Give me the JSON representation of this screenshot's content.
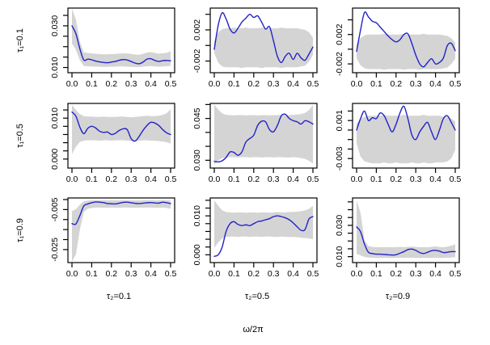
{
  "figure": {
    "xlabel": "ω/2π",
    "row_labels": [
      "τ₁=0.1",
      "τ₁=0.5",
      "τ₁=0.9"
    ],
    "col_labels": [
      "τ₂=0.1",
      "τ₂=0.5",
      "τ₂=0.9"
    ],
    "colors": {
      "line": "#2222c8",
      "band": "#d4d4d4",
      "axis": "#000000",
      "background": "#ffffff"
    }
  },
  "chart_data": {
    "type": "line",
    "description": "3x3 grid of spectral estimate curves (blue line) with gray confidence bands vs frequency",
    "x_label": "ω/2π",
    "x_start": 0.0,
    "x_end": 0.5,
    "x_step": 0.02,
    "x_tick_labels": [
      "0.0",
      "0.1",
      "0.2",
      "0.3",
      "0.4",
      "0.5"
    ],
    "x_tick_values": [
      0.0,
      0.1,
      0.2,
      0.3,
      0.4,
      0.5
    ],
    "panels": [
      {
        "row": 0,
        "col": 0,
        "row_label": "τ₁=0.1",
        "col_label": "τ₂=0.1",
        "ylim": [
          0.0075,
          0.0385
        ],
        "yticks": [
          0.01,
          0.015,
          0.02,
          0.025,
          0.03,
          0.035
        ],
        "ytick_labels": [
          "0.010",
          "0.030"
        ],
        "ytick_label_values": [
          0.01,
          0.03
        ],
        "line": [
          0.03,
          0.0262,
          0.019,
          0.0136,
          0.014,
          0.0137,
          0.0131,
          0.0127,
          0.0124,
          0.0123,
          0.0126,
          0.0129,
          0.0135,
          0.0138,
          0.0136,
          0.0129,
          0.0121,
          0.0118,
          0.0126,
          0.014,
          0.0142,
          0.0134,
          0.0129,
          0.0133,
          0.0134,
          0.0132
        ],
        "band_lo": [
          0.0215,
          0.0185,
          0.0135,
          0.0108,
          0.0106,
          0.0105,
          0.0104,
          0.0104,
          0.0103,
          0.0103,
          0.0104,
          0.0104,
          0.0105,
          0.0105,
          0.0104,
          0.0103,
          0.0102,
          0.0102,
          0.0104,
          0.0106,
          0.0107,
          0.0105,
          0.0104,
          0.0105,
          0.0106,
          0.0108
        ],
        "band_hi": [
          0.0382,
          0.033,
          0.0225,
          0.0172,
          0.017,
          0.0168,
          0.0166,
          0.0164,
          0.0163,
          0.0163,
          0.0164,
          0.0165,
          0.0167,
          0.0168,
          0.0167,
          0.0165,
          0.0162,
          0.0161,
          0.0165,
          0.0172,
          0.0174,
          0.017,
          0.0166,
          0.0168,
          0.017,
          0.0178
        ]
      },
      {
        "row": 0,
        "col": 1,
        "row_label": "τ₁=0.1",
        "col_label": "τ₂=0.5",
        "ylim": [
          -0.0035,
          0.0048
        ],
        "yticks": [
          -0.002,
          0.0,
          0.002,
          0.004
        ],
        "ytick_labels": [
          "-0.002",
          "0.002"
        ],
        "ytick_label_values": [
          -0.002,
          0.002
        ],
        "line": [
          -0.0005,
          0.0026,
          0.0042,
          0.0034,
          0.0021,
          0.0016,
          0.0022,
          0.003,
          0.0035,
          0.004,
          0.0036,
          0.0038,
          0.003,
          0.0021,
          0.0024,
          0.0006,
          -0.0014,
          -0.0022,
          -0.0014,
          -0.001,
          -0.0018,
          -0.001,
          -0.0016,
          -0.0019,
          -0.0011,
          -0.0002
        ],
        "band_lo": [
          -0.001,
          -0.0022,
          -0.0027,
          -0.0028,
          -0.0028,
          -0.0028,
          -0.0028,
          -0.0029,
          -0.0028,
          -0.0028,
          -0.0028,
          -0.0028,
          -0.0029,
          -0.0028,
          -0.0028,
          -0.0028,
          -0.0028,
          -0.0029,
          -0.0028,
          -0.0028,
          -0.0028,
          -0.0028,
          -0.0027,
          -0.0026,
          -0.0021,
          -0.0012
        ],
        "band_hi": [
          0.0006,
          0.0017,
          0.0021,
          0.0022,
          0.0022,
          0.0023,
          0.0022,
          0.0022,
          0.0023,
          0.0022,
          0.0022,
          0.0022,
          0.0023,
          0.0022,
          0.0022,
          0.0022,
          0.0022,
          0.0023,
          0.0022,
          0.0022,
          0.0022,
          0.0022,
          0.0021,
          0.002,
          0.0017,
          0.001
        ]
      },
      {
        "row": 0,
        "col": 2,
        "row_label": "τ₁=0.1",
        "col_label": "τ₂=0.9",
        "ylim": [
          -0.0032,
          0.0056
        ],
        "yticks": [
          -0.002,
          0.0,
          0.002,
          0.004
        ],
        "ytick_labels": [
          "-0.002",
          "0.002"
        ],
        "ytick_label_values": [
          -0.002,
          0.002
        ],
        "line": [
          -0.0003,
          0.0026,
          0.005,
          0.0044,
          0.0038,
          0.0036,
          0.003,
          0.0024,
          0.0018,
          0.0013,
          0.001,
          0.0013,
          0.002,
          0.0021,
          0.0008,
          -0.0008,
          -0.002,
          -0.0024,
          -0.0018,
          -0.0013,
          -0.002,
          -0.0018,
          -0.0012,
          0.0005,
          0.0008,
          -0.0002
        ],
        "band_lo": [
          -0.0012,
          -0.0022,
          -0.0026,
          -0.0027,
          -0.0027,
          -0.0027,
          -0.0027,
          -0.0028,
          -0.0027,
          -0.0027,
          -0.0027,
          -0.0027,
          -0.0028,
          -0.0027,
          -0.0027,
          -0.0027,
          -0.0028,
          -0.0027,
          -0.0027,
          -0.0027,
          -0.0027,
          -0.0027,
          -0.0026,
          -0.0025,
          -0.002,
          -0.0013
        ],
        "band_hi": [
          0.0007,
          0.0015,
          0.0019,
          0.002,
          0.002,
          0.002,
          0.002,
          0.0021,
          0.002,
          0.002,
          0.002,
          0.002,
          0.0021,
          0.002,
          0.002,
          0.002,
          0.002,
          0.0021,
          0.002,
          0.002,
          0.002,
          0.002,
          0.0019,
          0.0018,
          0.0015,
          0.0009
        ]
      },
      {
        "row": 1,
        "col": 0,
        "row_label": "τ₁=0.5",
        "col_label": "τ₂=0.1",
        "ylim": [
          -0.0022,
          0.0136
        ],
        "yticks": [
          0.0,
          0.002,
          0.004,
          0.006,
          0.008,
          0.01,
          0.012
        ],
        "ytick_labels": [
          "0.000",
          "0.010"
        ],
        "ytick_label_values": [
          0.0,
          0.01
        ],
        "line": [
          0.0115,
          0.0105,
          0.0078,
          0.0062,
          0.0075,
          0.008,
          0.0076,
          0.0068,
          0.0065,
          0.0066,
          0.006,
          0.0063,
          0.007,
          0.0074,
          0.0072,
          0.005,
          0.0044,
          0.0055,
          0.007,
          0.0082,
          0.009,
          0.0088,
          0.0082,
          0.0072,
          0.0064,
          0.006
        ],
        "band_lo": [
          0.0012,
          0.003,
          0.0042,
          0.0045,
          0.0046,
          0.0046,
          0.0046,
          0.0045,
          0.0046,
          0.0046,
          0.0045,
          0.0046,
          0.0046,
          0.0046,
          0.0045,
          0.0044,
          0.0044,
          0.0045,
          0.0046,
          0.0046,
          0.0045,
          0.0045,
          0.0044,
          0.0043,
          0.0041,
          0.0038
        ],
        "band_hi": [
          0.0132,
          0.012,
          0.011,
          0.0105,
          0.0104,
          0.0104,
          0.0103,
          0.0103,
          0.0104,
          0.0103,
          0.0103,
          0.0103,
          0.0104,
          0.0104,
          0.0103,
          0.0102,
          0.0103,
          0.0104,
          0.0105,
          0.0106,
          0.0105,
          0.0105,
          0.0106,
          0.0108,
          0.0112,
          0.0122
        ]
      },
      {
        "row": 1,
        "col": 1,
        "row_label": "τ₁=0.5",
        "col_label": "τ₂=0.5",
        "ylim": [
          0.0272,
          0.0504
        ],
        "yticks": [
          0.03,
          0.035,
          0.04,
          0.045,
          0.05
        ],
        "ytick_labels": [
          "0.030",
          "0.045"
        ],
        "ytick_label_values": [
          0.03,
          0.045
        ],
        "line": [
          0.0296,
          0.0294,
          0.0298,
          0.031,
          0.033,
          0.0328,
          0.0318,
          0.033,
          0.0365,
          0.0378,
          0.039,
          0.0425,
          0.044,
          0.0438,
          0.041,
          0.0402,
          0.0425,
          0.046,
          0.0465,
          0.045,
          0.0442,
          0.0438,
          0.043,
          0.0442,
          0.0438,
          0.043
        ],
        "band_lo": [
          0.0284,
          0.03,
          0.0308,
          0.031,
          0.0311,
          0.0311,
          0.031,
          0.0311,
          0.0311,
          0.031,
          0.0311,
          0.0311,
          0.031,
          0.0311,
          0.0311,
          0.031,
          0.0311,
          0.0311,
          0.031,
          0.031,
          0.0311,
          0.031,
          0.0308,
          0.0305,
          0.0298,
          0.0288
        ],
        "band_hi": [
          0.05,
          0.0482,
          0.0468,
          0.0463,
          0.0462,
          0.0461,
          0.0462,
          0.0462,
          0.0461,
          0.0462,
          0.0462,
          0.0461,
          0.0462,
          0.0462,
          0.0461,
          0.0462,
          0.0462,
          0.0463,
          0.0462,
          0.0462,
          0.0463,
          0.0464,
          0.0466,
          0.047,
          0.048,
          0.0498
        ]
      },
      {
        "row": 1,
        "col": 2,
        "row_label": "τ₁=0.5",
        "col_label": "τ₂=0.9",
        "ylim": [
          -0.004,
          0.0028
        ],
        "yticks": [
          -0.003,
          -0.002,
          -0.001,
          0.0,
          0.001,
          0.002
        ],
        "ytick_labels": [
          "-0.003",
          "0.001"
        ],
        "ytick_label_values": [
          -0.003,
          0.001
        ],
        "line": [
          0.0,
          0.0012,
          0.002,
          0.001,
          0.0013,
          0.0012,
          0.0018,
          0.0015,
          0.0006,
          -0.0002,
          0.0006,
          0.0018,
          0.0025,
          0.0012,
          -0.0005,
          -0.001,
          -0.0002,
          0.0004,
          0.0008,
          -0.0002,
          -0.001,
          0.0,
          0.0012,
          0.0015,
          0.0008,
          0.0
        ],
        "band_lo": [
          -0.0014,
          -0.0028,
          -0.0033,
          -0.0034,
          -0.0035,
          -0.0035,
          -0.0035,
          -0.0034,
          -0.0035,
          -0.0035,
          -0.0034,
          -0.0035,
          -0.0035,
          -0.0035,
          -0.0034,
          -0.0035,
          -0.0035,
          -0.0034,
          -0.0035,
          -0.0035,
          -0.0034,
          -0.0034,
          -0.0034,
          -0.0033,
          -0.003,
          -0.0021
        ],
        "band_hi": [
          0.0007,
          0.0012,
          0.0014,
          0.0015,
          0.0015,
          0.0015,
          0.0015,
          0.0016,
          0.0015,
          0.0015,
          0.0015,
          0.0015,
          0.0016,
          0.0015,
          0.0015,
          0.0015,
          0.0015,
          0.0016,
          0.0015,
          0.0015,
          0.0015,
          0.0015,
          0.0014,
          0.0014,
          0.0012,
          0.0009
        ]
      },
      {
        "row": 2,
        "col": 0,
        "row_label": "τ₁=0.9",
        "col_label": "τ₂=0.1",
        "ylim": [
          -0.0315,
          0.0008
        ],
        "yticks": [
          -0.025,
          -0.02,
          -0.015,
          -0.01,
          -0.005,
          0.0
        ],
        "ytick_labels": [
          "-0.025",
          "-0.005"
        ],
        "ytick_label_values": [
          -0.025,
          -0.005
        ],
        "line": [
          -0.012,
          -0.0122,
          -0.008,
          -0.0032,
          -0.0022,
          -0.0016,
          -0.0012,
          -0.0013,
          -0.0015,
          -0.002,
          -0.0021,
          -0.0022,
          -0.0018,
          -0.0014,
          -0.0013,
          -0.0016,
          -0.0019,
          -0.002,
          -0.0018,
          -0.0016,
          -0.0015,
          -0.0017,
          -0.0018,
          -0.0013,
          -0.0016,
          -0.002
        ],
        "band_lo": [
          -0.031,
          -0.0275,
          -0.015,
          -0.0062,
          -0.0046,
          -0.0042,
          -0.004,
          -0.004,
          -0.0041,
          -0.0041,
          -0.004,
          -0.0041,
          -0.0041,
          -0.004,
          -0.004,
          -0.0041,
          -0.0041,
          -0.0041,
          -0.004,
          -0.004,
          -0.004,
          -0.0041,
          -0.0041,
          -0.004,
          -0.0042,
          -0.0046
        ],
        "band_hi": [
          -0.0058,
          -0.0048,
          -0.0026,
          -0.0009,
          -0.0005,
          -0.0004,
          -0.0003,
          -0.0003,
          -0.0004,
          -0.0004,
          -0.0003,
          -0.0004,
          -0.0004,
          -0.0003,
          -0.0003,
          -0.0004,
          -0.0004,
          -0.0004,
          -0.0003,
          -0.0003,
          -0.0003,
          -0.0004,
          -0.0004,
          -0.0003,
          -0.0004,
          -0.0005
        ]
      },
      {
        "row": 2,
        "col": 1,
        "row_label": "τ₁=0.9",
        "col_label": "τ₂=0.5",
        "ylim": [
          -0.002,
          0.0146
        ],
        "yticks": [
          0.0,
          0.002,
          0.004,
          0.006,
          0.008,
          0.01,
          0.012,
          0.014
        ],
        "ytick_labels": [
          "0.000",
          "0.010"
        ],
        "ytick_label_values": [
          0.0,
          0.01
        ],
        "line": [
          -0.0004,
          0.0,
          0.002,
          0.006,
          0.008,
          0.0085,
          0.0078,
          0.0075,
          0.0077,
          0.0075,
          0.008,
          0.0085,
          0.0087,
          0.009,
          0.0093,
          0.0098,
          0.01,
          0.0098,
          0.0095,
          0.009,
          0.0082,
          0.0072,
          0.0063,
          0.0065,
          0.0092,
          0.0098
        ],
        "band_lo": [
          0.0018,
          0.0032,
          0.0042,
          0.0046,
          0.0047,
          0.0047,
          0.0046,
          0.0047,
          0.0047,
          0.0046,
          0.0047,
          0.0047,
          0.0046,
          0.0047,
          0.0047,
          0.0046,
          0.0046,
          0.0047,
          0.0046,
          0.0046,
          0.0046,
          0.0045,
          0.0044,
          0.0043,
          0.0042,
          0.004
        ],
        "band_hi": [
          0.014,
          0.0126,
          0.0114,
          0.011,
          0.0109,
          0.0108,
          0.0109,
          0.0109,
          0.0108,
          0.0109,
          0.0109,
          0.0108,
          0.0109,
          0.0109,
          0.0108,
          0.0109,
          0.011,
          0.0109,
          0.0109,
          0.011,
          0.011,
          0.0111,
          0.0112,
          0.0114,
          0.0118,
          0.0126
        ]
      },
      {
        "row": 2,
        "col": 2,
        "row_label": "τ₁=0.9",
        "col_label": "τ₂=0.9",
        "ylim": [
          0.0062,
          0.0475
        ],
        "yticks": [
          0.01,
          0.015,
          0.02,
          0.025,
          0.03,
          0.035,
          0.04,
          0.045
        ],
        "ytick_labels": [
          "0.010",
          "0.030"
        ],
        "ytick_label_values": [
          0.01,
          0.03
        ],
        "line": [
          0.029,
          0.026,
          0.018,
          0.0128,
          0.012,
          0.0116,
          0.0116,
          0.0114,
          0.0112,
          0.011,
          0.0112,
          0.0122,
          0.0132,
          0.0145,
          0.0148,
          0.014,
          0.0126,
          0.012,
          0.0128,
          0.0138,
          0.014,
          0.0135,
          0.0126,
          0.0128,
          0.0132,
          0.0132
        ],
        "band_lo": [
          0.0118,
          0.0108,
          0.0098,
          0.0094,
          0.0093,
          0.0092,
          0.0092,
          0.0093,
          0.0092,
          0.0092,
          0.0093,
          0.0093,
          0.0092,
          0.0093,
          0.0093,
          0.0092,
          0.0092,
          0.0093,
          0.0092,
          0.0092,
          0.0093,
          0.0092,
          0.0092,
          0.0093,
          0.0094,
          0.0096
        ],
        "band_hi": [
          0.0458,
          0.038,
          0.0205,
          0.0168,
          0.0162,
          0.016,
          0.016,
          0.0161,
          0.016,
          0.016,
          0.0161,
          0.0162,
          0.0161,
          0.0163,
          0.0164,
          0.0162,
          0.016,
          0.0161,
          0.016,
          0.0163,
          0.0165,
          0.0162,
          0.016,
          0.0164,
          0.017,
          0.0178
        ]
      }
    ]
  }
}
